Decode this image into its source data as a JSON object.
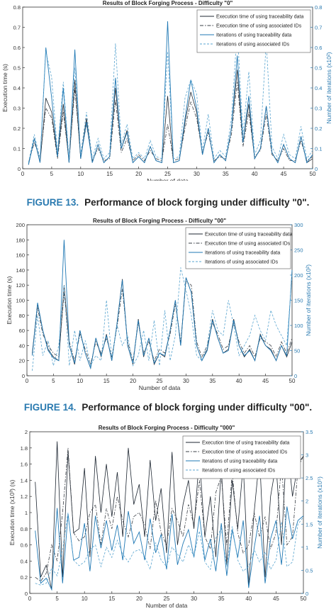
{
  "charts": [
    {
      "caption_label": "FIGURE 13.",
      "caption_text": "Performance of block forging under difficulty \"0\".",
      "chart_data": {
        "type": "line",
        "title": "Results of Block Forging Process - Difficulty \"0\"",
        "xlabel": "Number of data",
        "ylabel": "Execution time (s)",
        "ylabel2": "Number of iterations (x10²)",
        "xlim": [
          0,
          50
        ],
        "ylim": [
          0,
          0.8
        ],
        "ylim2": [
          0,
          0.8
        ],
        "xticks": [
          "0",
          "5",
          "10",
          "15",
          "20",
          "25",
          "30",
          "35",
          "40",
          "45",
          "50"
        ],
        "yticks": [
          "0",
          "0.1",
          "0.2",
          "0.3",
          "0.4",
          "0.5",
          "0.6",
          "0.7",
          "0.8"
        ],
        "yticks2": [
          "0",
          "0.1",
          "0.2",
          "0.3",
          "0.4",
          "0.5",
          "0.6",
          "0.7",
          "0.8"
        ],
        "legend": [
          "Execution time of using traceability data",
          "Execution time of using associated IDs",
          "Iterations of using traceability data",
          "Iterations of using associated IDs"
        ],
        "x": [
          1,
          2,
          3,
          4,
          5,
          6,
          7,
          8,
          9,
          10,
          11,
          12,
          13,
          14,
          15,
          16,
          17,
          18,
          19,
          20,
          21,
          22,
          23,
          24,
          25,
          26,
          27,
          28,
          29,
          30,
          31,
          32,
          33,
          34,
          35,
          36,
          37,
          38,
          39,
          40,
          41,
          42,
          43,
          44,
          45,
          46,
          47,
          48,
          49,
          50
        ],
        "series": [
          {
            "values": [
              0.02,
              0.15,
              0.03,
              0.35,
              0.28,
              0.06,
              0.32,
              0.03,
              0.44,
              0.05,
              0.25,
              0.03,
              0.12,
              0.03,
              0.06,
              0.4,
              0.1,
              0.19,
              0.03,
              0.06,
              0.03,
              0.11,
              0.04,
              0.03,
              0.36,
              0.03,
              0.04,
              0.23,
              0.38,
              0.28,
              0.07,
              0.2,
              0.03,
              0.07,
              0.04,
              0.2,
              0.49,
              0.13,
              0.32,
              0.05,
              0.1,
              0.31,
              0.08,
              0.03,
              0.12,
              0.05,
              0.03,
              0.16,
              0.03,
              0.05
            ]
          },
          {
            "values": [
              0.03,
              0.13,
              0.05,
              0.3,
              0.25,
              0.05,
              0.28,
              0.04,
              0.4,
              0.06,
              0.22,
              0.04,
              0.1,
              0.04,
              0.05,
              0.34,
              0.08,
              0.15,
              0.04,
              0.07,
              0.04,
              0.09,
              0.05,
              0.04,
              0.22,
              0.04,
              0.05,
              0.2,
              0.33,
              0.25,
              0.08,
              0.18,
              0.04,
              0.06,
              0.05,
              0.17,
              0.43,
              0.11,
              0.28,
              0.06,
              0.09,
              0.27,
              0.07,
              0.04,
              0.1,
              0.04,
              0.04,
              0.14,
              0.04,
              0.06
            ]
          },
          {
            "values": [
              0.02,
              0.15,
              0.03,
              0.6,
              0.35,
              0.06,
              0.4,
              0.03,
              0.59,
              0.05,
              0.23,
              0.03,
              0.12,
              0.03,
              0.06,
              0.45,
              0.1,
              0.18,
              0.03,
              0.06,
              0.03,
              0.11,
              0.04,
              0.03,
              0.73,
              0.03,
              0.04,
              0.25,
              0.44,
              0.3,
              0.07,
              0.2,
              0.03,
              0.07,
              0.04,
              0.2,
              0.56,
              0.13,
              0.36,
              0.05,
              0.1,
              0.31,
              0.08,
              0.03,
              0.12,
              0.05,
              0.03,
              0.16,
              0.03,
              0.07
            ]
          },
          {
            "values": [
              0.03,
              0.17,
              0.05,
              0.58,
              0.45,
              0.08,
              0.43,
              0.05,
              0.5,
              0.07,
              0.28,
              0.05,
              0.15,
              0.05,
              0.08,
              0.62,
              0.12,
              0.22,
              0.05,
              0.08,
              0.05,
              0.14,
              0.06,
              0.05,
              0.58,
              0.05,
              0.06,
              0.35,
              0.44,
              0.37,
              0.09,
              0.27,
              0.05,
              0.09,
              0.06,
              0.25,
              0.69,
              0.17,
              0.48,
              0.07,
              0.14,
              0.63,
              0.11,
              0.05,
              0.17,
              0.07,
              0.05,
              0.21,
              0.05,
              0.09
            ]
          }
        ]
      }
    },
    {
      "caption_label": "FIGURE 14.",
      "caption_text": "Performance of block forging under difficulty \"00\".",
      "chart_data": {
        "type": "line",
        "title": "Results of Block Forging Process - Difficulty \"00\"",
        "xlabel": "Number of data",
        "ylabel": "Execution time (s)",
        "ylabel2": "Number of iterations (x10²)",
        "xlim": [
          0,
          50
        ],
        "ylim": [
          0,
          200
        ],
        "ylim2": [
          0,
          300
        ],
        "xticks": [
          "0",
          "5",
          "10",
          "15",
          "20",
          "25",
          "30",
          "35",
          "40",
          "45",
          "50"
        ],
        "yticks": [
          "0",
          "20",
          "40",
          "60",
          "80",
          "100",
          "120",
          "140",
          "160",
          "180",
          "200"
        ],
        "yticks2": [
          "0",
          "50",
          "100",
          "150",
          "200",
          "250",
          "300"
        ],
        "legend": [
          "Execution time of using traceability data",
          "Execution time of using associated IDs",
          "Iterations of using traceability data",
          "Iterations of using associated IDs"
        ],
        "x": [
          1,
          2,
          3,
          4,
          5,
          6,
          7,
          8,
          9,
          10,
          11,
          12,
          13,
          14,
          15,
          16,
          17,
          18,
          19,
          20,
          21,
          22,
          23,
          24,
          25,
          26,
          27,
          28,
          29,
          30,
          31,
          32,
          33,
          34,
          35,
          36,
          37,
          38,
          39,
          40,
          41,
          42,
          43,
          44,
          45,
          46,
          47,
          48,
          49,
          50
        ],
        "series": [
          {
            "values": [
              30,
              95,
              60,
              35,
              25,
              20,
              120,
              40,
              15,
              60,
              30,
              10,
              50,
              25,
              55,
              20,
              70,
              128,
              40,
              15,
              75,
              25,
              50,
              15,
              30,
              25,
              60,
              100,
              40,
              130,
              110,
              40,
              20,
              35,
              75,
              50,
              30,
              35,
              75,
              40,
              25,
              35,
              20,
              55,
              40,
              35,
              20,
              40,
              25,
              45
            ]
          },
          {
            "values": [
              28,
              90,
              55,
              40,
              30,
              25,
              110,
              45,
              20,
              55,
              35,
              15,
              45,
              30,
              50,
              25,
              65,
              115,
              45,
              20,
              70,
              30,
              45,
              20,
              35,
              30,
              55,
              95,
              45,
              125,
              120,
              45,
              25,
              40,
              70,
              55,
              35,
              40,
              70,
              45,
              30,
              40,
              25,
              50,
              45,
              40,
              25,
              45,
              30,
              50
            ]
          },
          {
            "values": [
              40,
              145,
              90,
              50,
              35,
              30,
              270,
              60,
              25,
              90,
              45,
              15,
              75,
              40,
              80,
              30,
              105,
              190,
              60,
              25,
              110,
              40,
              75,
              25,
              45,
              40,
              90,
              150,
              60,
              195,
              165,
              60,
              30,
              50,
              110,
              75,
              45,
              50,
              110,
              60,
              40,
              50,
              30,
              80,
              60,
              50,
              30,
              60,
              40,
              210
            ]
          },
          {
            "values": [
              10,
              120,
              40,
              70,
              20,
              60,
              180,
              20,
              90,
              30,
              70,
              20,
              40,
              30,
              150,
              35,
              100,
              60,
              80,
              20,
              40,
              90,
              30,
              110,
              20,
              130,
              30,
              80,
              215,
              170,
              120,
              40,
              30,
              60,
              130,
              90,
              80,
              150,
              100,
              40,
              60,
              80,
              120,
              90,
              70,
              130,
              100,
              80,
              60,
              200
            ]
          }
        ]
      }
    },
    {
      "caption_label": "",
      "caption_text": "",
      "chart_data": {
        "type": "line",
        "title": "Results of Block Forging Process - Difficulty \"000\"",
        "xlabel": "Number of data",
        "ylabel": "Execution time (x10³) (s)",
        "ylabel2": "Number of iterations (x10⁵)",
        "xlim": [
          0,
          50
        ],
        "ylim": [
          0,
          2
        ],
        "ylim2": [
          0,
          3.5
        ],
        "xticks": [
          "0",
          "5",
          "10",
          "15",
          "20",
          "25",
          "30",
          "35",
          "40",
          "45",
          "50"
        ],
        "yticks": [
          "0",
          "0.2",
          "0.4",
          "0.6",
          "0.8",
          "1",
          "1.2",
          "1.4",
          "1.6",
          "1.8",
          "2"
        ],
        "yticks2": [
          "0",
          "0.5",
          "1",
          "1.5",
          "2",
          "2.5",
          "3",
          "3.5"
        ],
        "legend": [
          "Execution time of using traceability data",
          "Execution time of using associated IDs",
          "Iterations of using traceability data",
          "Iterations of using associated IDs"
        ],
        "x": [
          1,
          2,
          3,
          4,
          5,
          6,
          7,
          8,
          9,
          10,
          11,
          12,
          13,
          14,
          15,
          16,
          17,
          18,
          19,
          20,
          21,
          22,
          23,
          24,
          25,
          26,
          27,
          28,
          29,
          30,
          31,
          32,
          33,
          34,
          35,
          36,
          37,
          38,
          39,
          40,
          41,
          42,
          43,
          44,
          45,
          46,
          47,
          48,
          49,
          50
        ],
        "series": [
          {
            "values": [
              1.38,
              0.2,
              0.35,
              0.05,
              1.88,
              0.2,
              1.75,
              0.75,
              0.8,
              1.55,
              0.45,
              1.7,
              1.0,
              1.6,
              0.95,
              1.5,
              0.7,
              1.8,
              1.1,
              1.35,
              0.7,
              1.65,
              0.9,
              1.3,
              0.5,
              1.75,
              0.6,
              1.1,
              1.4,
              0.8,
              1.7,
              0.7,
              1.2,
              0.45,
              1.55,
              0.35,
              1.4,
              0.8,
              1.6,
              0.1,
              1.0,
              1.7,
              0.2,
              1.2,
              1.6,
              0.6,
              1.9,
              1.2,
              1.6,
              1.7
            ]
          },
          {
            "values": [
              0.2,
              0.15,
              0.25,
              0.6,
              0.4,
              1.0,
              1.8,
              0.75,
              0.65,
              0.7,
              1.0,
              1.1,
              0.6,
              1.05,
              0.8,
              1.2,
              0.9,
              0.7,
              0.95,
              1.0,
              0.85,
              0.55,
              1.15,
              0.75,
              0.6,
              1.05,
              0.9,
              0.7,
              1.1,
              0.85,
              1.4,
              0.7,
              0.55,
              1.25,
              1.45,
              0.6,
              1.5,
              0.75,
              0.5,
              0.6,
              1.0,
              0.7,
              0.95,
              0.55,
              0.75,
              1.6,
              0.6,
              0.7,
              1.55,
              1.7
            ]
          },
          {
            "values": [
              1.36,
              0.22,
              0.33,
              0.08,
              1.85,
              0.22,
              1.72,
              0.72,
              0.78,
              1.52,
              0.48,
              1.68,
              0.98,
              1.58,
              0.93,
              1.48,
              0.72,
              1.78,
              1.08,
              1.33,
              0.72,
              1.62,
              0.88,
              1.28,
              0.52,
              1.72,
              0.62,
              1.08,
              1.38,
              0.78,
              1.68,
              0.72,
              1.18,
              0.48,
              1.52,
              0.38,
              1.38,
              0.78,
              1.58,
              0.12,
              0.98,
              1.68,
              0.22,
              1.18,
              1.58,
              0.62,
              1.88,
              1.18,
              1.58,
              1.68
            ]
          },
          {
            "values": [
              0.22,
              0.18,
              0.22,
              0.55,
              0.38,
              0.95,
              1.75,
              0.72,
              0.6,
              0.68,
              0.95,
              1.05,
              0.58,
              1.0,
              0.78,
              1.15,
              0.85,
              0.68,
              0.9,
              0.95,
              0.8,
              0.52,
              1.1,
              0.72,
              0.58,
              1.0,
              0.85,
              0.68,
              1.05,
              0.8,
              1.35,
              0.68,
              0.52,
              1.2,
              1.4,
              0.58,
              1.45,
              0.72,
              0.48,
              0.58,
              0.95,
              0.68,
              0.9,
              0.52,
              0.72,
              1.55,
              0.58,
              0.68,
              1.5,
              1.65
            ]
          }
        ]
      }
    }
  ],
  "series_styles": [
    {
      "color": "#1c2530",
      "dash": ""
    },
    {
      "color": "#3a3f46",
      "dash": "5 2 1.5 2"
    },
    {
      "color": "#1f78b4",
      "dash": ""
    },
    {
      "color": "#5aa5d0",
      "dash": "3 2"
    }
  ]
}
